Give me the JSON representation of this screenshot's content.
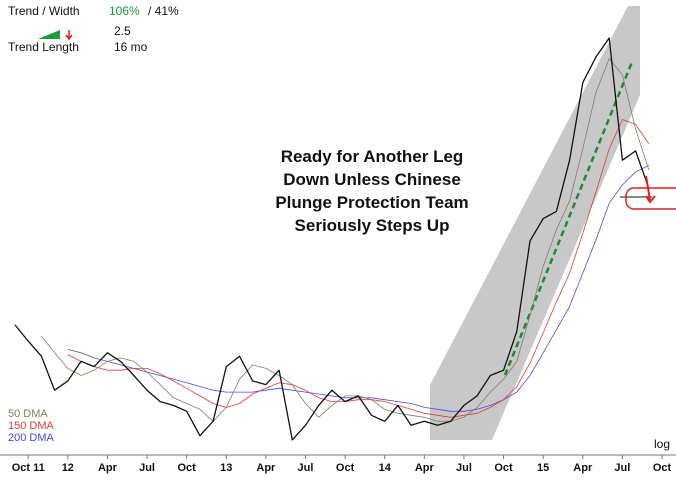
{
  "chart_data": {
    "type": "line",
    "log": true,
    "annotation_lines": [
      "Ready for Another Leg",
      "Down Unless Chinese",
      "Plunge Protection Team",
      "Seriously Steps Up"
    ],
    "stats": {
      "trend_width_label": "Trend / Width",
      "trend_pct": "106%",
      "width_pct": "/ 41%",
      "slope": "2.5",
      "trend_length_label": "Trend Length",
      "trend_length": "16 mo"
    },
    "scale_label": "log",
    "x": [
      "2011-09",
      "2011-10",
      "2011-11",
      "2011-12",
      "2012-01",
      "2012-02",
      "2012-03",
      "2012-04",
      "2012-05",
      "2012-06",
      "2012-07",
      "2012-08",
      "2012-09",
      "2012-10",
      "2012-11",
      "2012-12",
      "2013-01",
      "2013-02",
      "2013-03",
      "2013-04",
      "2013-05",
      "2013-06",
      "2013-07",
      "2013-08",
      "2013-09",
      "2013-10",
      "2013-11",
      "2013-12",
      "2014-01",
      "2014-02",
      "2014-03",
      "2014-04",
      "2014-05",
      "2014-06",
      "2014-07",
      "2014-08",
      "2014-09",
      "2014-10",
      "2014-11",
      "2014-12",
      "2015-01",
      "2015-02",
      "2015-03",
      "2015-04",
      "2015-05",
      "2015-06",
      "2015-07",
      "2015-08",
      "2015-09"
    ],
    "xlim": [
      "2011-09",
      "2015-10"
    ],
    "xticks": [
      {
        "value": "2011-10",
        "label": "Oct 11"
      },
      {
        "value": "2012-01",
        "label": "12"
      },
      {
        "value": "2012-04",
        "label": "Apr"
      },
      {
        "value": "2012-07",
        "label": "Jul"
      },
      {
        "value": "2012-10",
        "label": "Oct"
      },
      {
        "value": "2013-01",
        "label": "13"
      },
      {
        "value": "2013-04",
        "label": "Apr"
      },
      {
        "value": "2013-07",
        "label": "Jul"
      },
      {
        "value": "2013-10",
        "label": "Oct"
      },
      {
        "value": "2014-01",
        "label": "14"
      },
      {
        "value": "2014-04",
        "label": "Apr"
      },
      {
        "value": "2014-07",
        "label": "Jul"
      },
      {
        "value": "2014-10",
        "label": "Oct"
      },
      {
        "value": "2015-01",
        "label": "15"
      },
      {
        "value": "2015-04",
        "label": "Apr"
      },
      {
        "value": "2015-07",
        "label": "Jul"
      },
      {
        "value": "2015-10",
        "label": "Oct"
      }
    ],
    "ylim": [
      1800,
      5400
    ],
    "series": [
      {
        "color": "#111111",
        "width": 1.3,
        "values": [
          2500,
          2400,
          2310,
          2120,
          2170,
          2280,
          2250,
          2330,
          2280,
          2200,
          2120,
          2060,
          2040,
          2010,
          1890,
          1960,
          2250,
          2310,
          2170,
          2150,
          2230,
          1870,
          1940,
          2040,
          2120,
          2060,
          2090,
          1990,
          1960,
          2040,
          1940,
          1960,
          1940,
          1960,
          2040,
          2090,
          2200,
          2230,
          2460,
          3090,
          3270,
          3330,
          3790,
          4610,
          4920,
          5160,
          3790,
          3880,
          3530
        ]
      },
      {
        "name": "50 DMA",
        "color": "#8a7a66",
        "width": 0.8,
        "values": [
          null,
          null,
          2430,
          2330,
          2240,
          2200,
          2230,
          2280,
          2300,
          2280,
          2220,
          2150,
          2080,
          2050,
          2020,
          1960,
          2030,
          2180,
          2260,
          2240,
          2200,
          2150,
          2050,
          1980,
          2040,
          2090,
          2090,
          2070,
          2020,
          2000,
          1990,
          1980,
          1960,
          1960,
          1980,
          2030,
          2110,
          2180,
          2280,
          2560,
          2900,
          3180,
          3420,
          3900,
          4500,
          4900,
          4700,
          4100,
          3700
        ]
      },
      {
        "name": "150 DMA",
        "color": "#e23a3a",
        "width": 0.8,
        "values": [
          null,
          null,
          null,
          null,
          2320,
          2280,
          2250,
          2230,
          2230,
          2240,
          2240,
          2210,
          2170,
          2130,
          2090,
          2050,
          2030,
          2050,
          2100,
          2130,
          2160,
          2150,
          2120,
          2080,
          2060,
          2060,
          2070,
          2070,
          2060,
          2040,
          2020,
          2000,
          1990,
          1980,
          1990,
          2000,
          2030,
          2070,
          2140,
          2270,
          2450,
          2650,
          2850,
          3150,
          3500,
          3900,
          4200,
          4150,
          3950
        ]
      },
      {
        "name": "200 DMA",
        "color": "#4a4ae0",
        "width": 0.8,
        "values": [
          null,
          null,
          null,
          null,
          2350,
          2330,
          2300,
          2280,
          2260,
          2240,
          2220,
          2200,
          2180,
          2160,
          2140,
          2120,
          2110,
          2110,
          2110,
          2120,
          2130,
          2120,
          2110,
          2100,
          2090,
          2080,
          2080,
          2080,
          2070,
          2060,
          2050,
          2030,
          2020,
          2010,
          2010,
          2020,
          2040,
          2070,
          2110,
          2200,
          2330,
          2470,
          2620,
          2850,
          3100,
          3400,
          3560,
          3680,
          3740
        ]
      }
    ]
  }
}
